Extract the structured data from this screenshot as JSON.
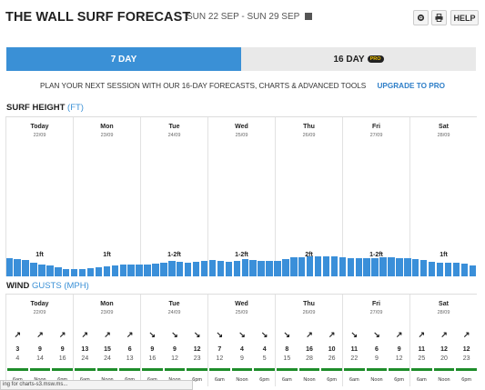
{
  "header": {
    "title": "THE WALL SURF FORECAST",
    "date_range": "SUN 22 SEP - SUN 29 SEP",
    "help_label": "HELP"
  },
  "tabs": [
    {
      "label": "7 DAY",
      "active": true
    },
    {
      "label": "16 DAY",
      "badge": "PRO",
      "active": false
    }
  ],
  "promo": {
    "text": "PLAN YOUR NEXT SESSION WITH OUR 16-DAY FORECASTS, CHARTS & ADVANCED TOOLS",
    "link": "UPGRADE TO PRO"
  },
  "surf": {
    "title": "SURF HEIGHT",
    "unit": "(FT)",
    "bar_color": "#3a8fd9",
    "bar_values": [
      0.9,
      0.85,
      0.8,
      0.7,
      0.6,
      0.55,
      0.45,
      0.35,
      0.35,
      0.38,
      0.4,
      0.45,
      0.5,
      0.55,
      0.6,
      0.6,
      0.58,
      0.6,
      0.65,
      0.7,
      0.75,
      0.72,
      0.7,
      0.72,
      0.78,
      0.8,
      0.75,
      0.72,
      0.75,
      0.85,
      0.82,
      0.78,
      0.75,
      0.75,
      0.85,
      0.95,
      0.97,
      1.0,
      1.0,
      0.98,
      0.98,
      0.95,
      0.92,
      0.9,
      0.92,
      0.92,
      0.95,
      0.95,
      0.92,
      0.9,
      0.85,
      0.8,
      0.72,
      0.7,
      0.7,
      0.68,
      0.65,
      0.55
    ]
  },
  "days": [
    {
      "name": "Today",
      "date": "22/09",
      "surf": "1ft"
    },
    {
      "name": "Mon",
      "date": "23/09",
      "surf": "1ft"
    },
    {
      "name": "Tue",
      "date": "24/09",
      "surf": "1-2ft"
    },
    {
      "name": "Wed",
      "date": "25/09",
      "surf": "1-2ft"
    },
    {
      "name": "Thu",
      "date": "26/09",
      "surf": "2ft"
    },
    {
      "name": "Fri",
      "date": "27/09",
      "surf": "1-2ft"
    },
    {
      "name": "Sat",
      "date": "28/09",
      "surf": "1ft"
    }
  ],
  "wind": {
    "title": "WIND",
    "unit_label": "GUSTS (MPH)",
    "gust_color": "#1e8d2a",
    "times": [
      "6am",
      "Noon",
      "6pm"
    ],
    "cells": [
      {
        "speed": "3",
        "gust": "4",
        "arrow": "↗"
      },
      {
        "speed": "9",
        "gust": "14",
        "arrow": "↗"
      },
      {
        "speed": "9",
        "gust": "16",
        "arrow": "↗"
      },
      {
        "speed": "13",
        "gust": "24",
        "arrow": "↗"
      },
      {
        "speed": "15",
        "gust": "24",
        "arrow": "↗"
      },
      {
        "speed": "6",
        "gust": "13",
        "arrow": "↗"
      },
      {
        "speed": "9",
        "gust": "16",
        "arrow": "↘"
      },
      {
        "speed": "9",
        "gust": "12",
        "arrow": "↘"
      },
      {
        "speed": "12",
        "gust": "23",
        "arrow": "↘"
      },
      {
        "speed": "7",
        "gust": "12",
        "arrow": "↘"
      },
      {
        "speed": "4",
        "gust": "9",
        "arrow": "↘"
      },
      {
        "speed": "4",
        "gust": "5",
        "arrow": "↘"
      },
      {
        "speed": "8",
        "gust": "15",
        "arrow": "↘"
      },
      {
        "speed": "16",
        "gust": "28",
        "arrow": "↗"
      },
      {
        "speed": "10",
        "gust": "26",
        "arrow": "↗"
      },
      {
        "speed": "11",
        "gust": "22",
        "arrow": "↘"
      },
      {
        "speed": "6",
        "gust": "9",
        "arrow": "↘"
      },
      {
        "speed": "9",
        "gust": "12",
        "arrow": "↗"
      },
      {
        "speed": "11",
        "gust": "25",
        "arrow": "↗"
      },
      {
        "speed": "12",
        "gust": "20",
        "arrow": "↗"
      },
      {
        "speed": "12",
        "gust": "23",
        "arrow": "↗"
      }
    ]
  },
  "status_bar": "ing for charts-s3.msw.ms..."
}
